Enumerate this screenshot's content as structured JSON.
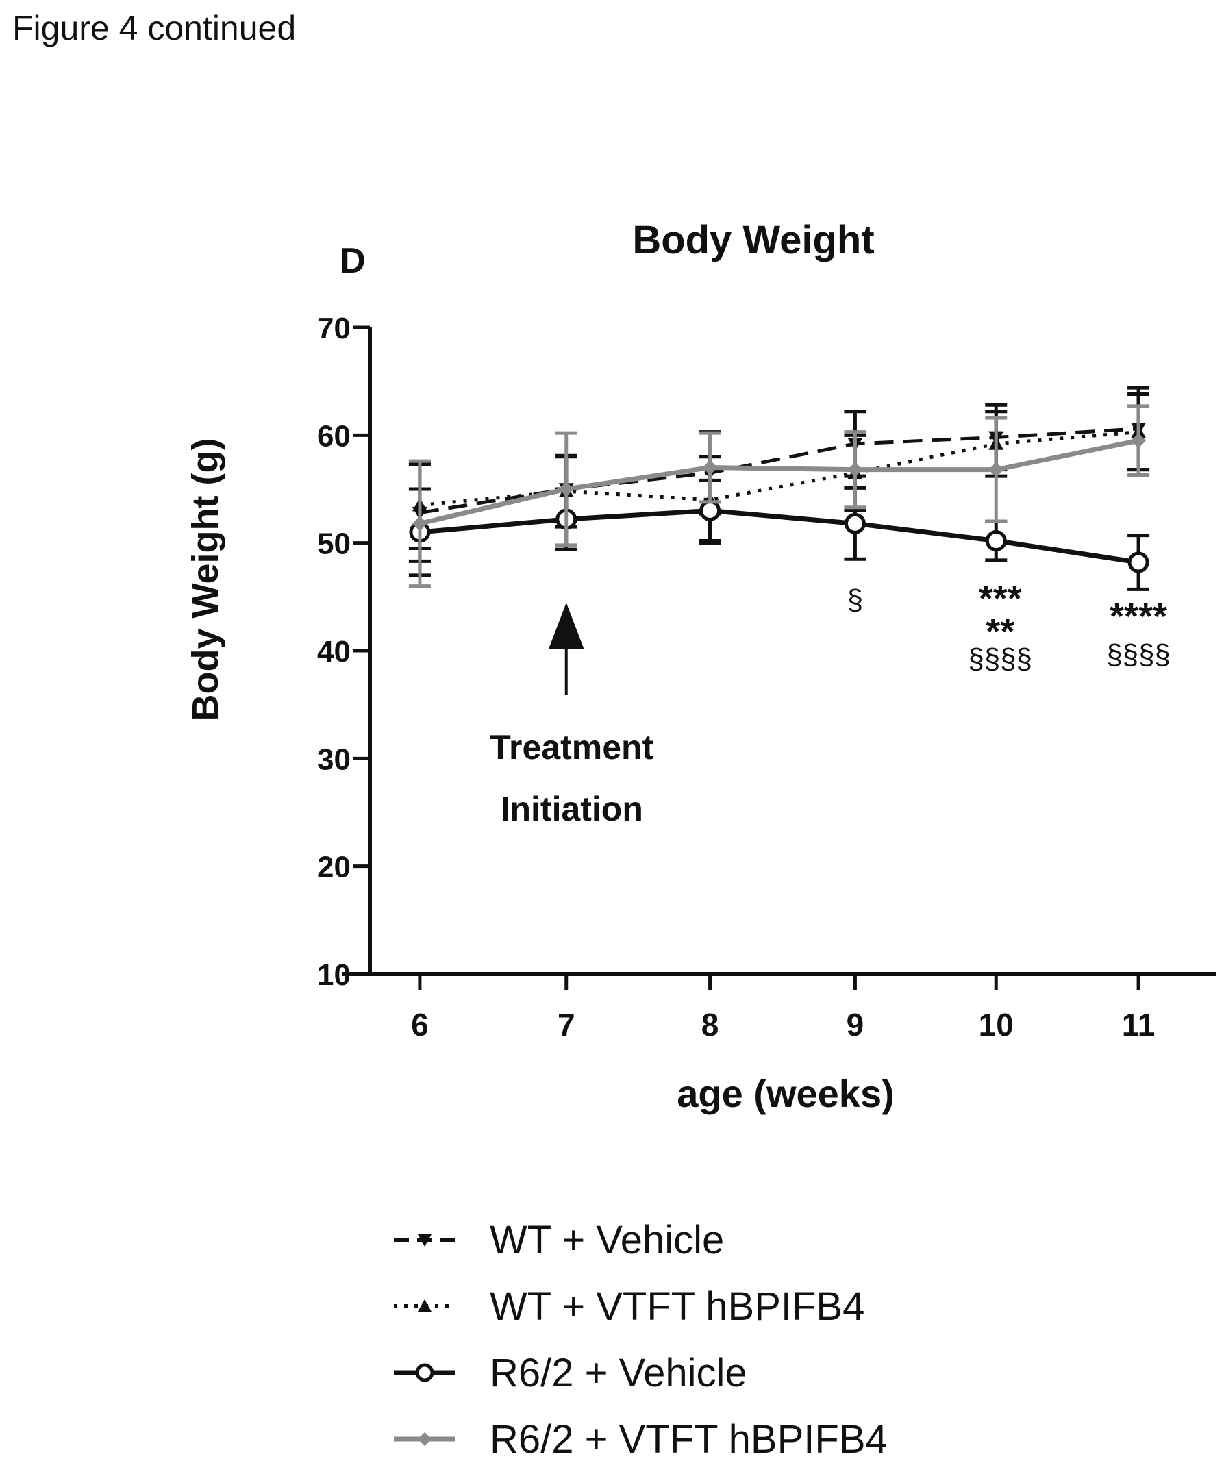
{
  "figure_caption": "Figure 4 continued",
  "panel_letter": "D",
  "chart_data": {
    "type": "line",
    "title": "Body Weight",
    "xlabel": "age (weeks)",
    "ylabel": "Body Weight (g)",
    "x": [
      6,
      7,
      8,
      9,
      10,
      11
    ],
    "x_ticks": [
      "6",
      "7",
      "8",
      "9",
      "10",
      "11"
    ],
    "y_ticks": [
      "10",
      "20",
      "30",
      "40",
      "50",
      "60",
      "70"
    ],
    "ylim": [
      10,
      70
    ],
    "series": [
      {
        "name": "WT + Vehicle",
        "style": "dashed",
        "marker": "triangle-down",
        "color": "#111111",
        "values": [
          52.8,
          55.0,
          56.5,
          59.2,
          59.8,
          60.6
        ],
        "errors": [
          4.5,
          3.0,
          3.8,
          3.0,
          3.0,
          3.8
        ]
      },
      {
        "name": "WT + VTFT hBPIFB4",
        "style": "dotted",
        "marker": "triangle-up",
        "color": "#111111",
        "values": [
          53.5,
          54.8,
          54.0,
          56.5,
          59.2,
          60.3
        ],
        "errors": [
          4.0,
          3.3,
          4.0,
          3.5,
          3.0,
          3.5
        ]
      },
      {
        "name": "R6/2 + Vehicle",
        "style": "solid",
        "marker": "circle",
        "color": "#111111",
        "values": [
          51.0,
          52.2,
          53.0,
          51.8,
          50.2,
          48.2
        ],
        "errors": [
          4.0,
          2.8,
          2.8,
          3.3,
          1.8,
          2.5
        ]
      },
      {
        "name": "R6/2 + VTFT hBPIFB4",
        "style": "solid",
        "marker": "diamond",
        "color": "#8a8a8a",
        "values": [
          51.8,
          55.0,
          57.0,
          56.8,
          56.8,
          59.5
        ],
        "errors": [
          5.8,
          5.2,
          3.2,
          3.5,
          4.8,
          3.2
        ]
      }
    ],
    "annotations": {
      "arrow_label_line1": "Treatment",
      "arrow_label_line2": "Initiation",
      "arrow_x": 7,
      "sig_9": "§",
      "sig_10_a": "***",
      "sig_10_b": "**",
      "sig_10_c": "§§§§",
      "sig_11_a": "****",
      "sig_11_b": "§§§§"
    },
    "legend_placement": "bottom"
  }
}
